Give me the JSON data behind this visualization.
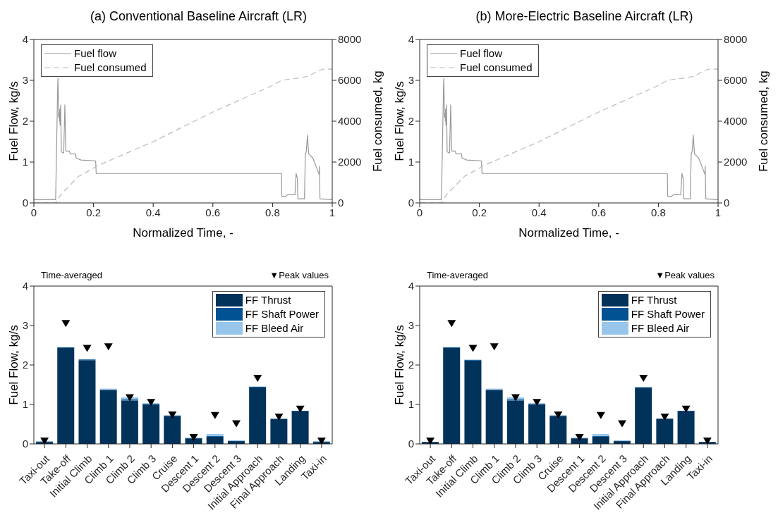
{
  "chart_data": [
    {
      "type": "line",
      "title": "(a) Conventional Baseline Aircraft (LR)",
      "xlabel": "Normalized Time, -",
      "ylabel": "Fuel Flow, kg/s",
      "y2label": "Fuel consumed, kg",
      "xlim": [
        0,
        1
      ],
      "xticks": [
        0,
        0.2,
        0.4,
        0.6,
        0.8,
        1
      ],
      "ylim": [
        0,
        4
      ],
      "yticks": [
        0,
        1,
        2,
        3,
        4
      ],
      "y2lim": [
        0,
        8000
      ],
      "y2ticks": [
        0,
        2000,
        4000,
        6000,
        8000
      ],
      "legend": "top left",
      "series": [
        {
          "name": "Fuel flow",
          "color": "#999999",
          "line_style": "solid",
          "x": [
            0,
            0.073,
            0.08,
            0.081,
            0.083,
            0.085,
            0.086,
            0.087,
            0.088,
            0.09,
            0.092,
            0.1,
            0.104,
            0.107,
            0.119,
            0.122,
            0.14,
            0.142,
            0.158,
            0.207,
            0.209,
            0.83,
            0.831,
            0.843,
            0.85,
            0.875,
            0.879,
            0.883,
            0.885,
            0.907,
            0.91,
            0.913,
            0.917,
            0.921,
            0.935,
            0.956,
            0.957,
            0.959,
            1
          ],
          "values": [
            0.08,
            0.08,
            2.9,
            3.05,
            2.1,
            2.2,
            2.0,
            2.3,
            1.9,
            2.4,
            1.25,
            1.22,
            2.4,
            1.27,
            1.27,
            1.2,
            1.2,
            1.1,
            1.05,
            1.03,
            0.72,
            0.72,
            0.17,
            0.15,
            0.2,
            0.2,
            0.72,
            0.6,
            0.1,
            0.1,
            1.2,
            1.25,
            1.66,
            1.2,
            1.1,
            0.7,
            0.9,
            0.1,
            0.08
          ]
        },
        {
          "name": "Fuel consumed",
          "color": "#bbbbbb",
          "line_style": "dashed",
          "axis": "y2",
          "x": [
            0,
            0.073,
            0.09,
            0.12,
            0.15,
            0.2,
            0.21,
            0.4,
            0.6,
            0.8,
            0.83,
            0.88,
            0.92,
            0.95,
            0.97,
            1
          ],
          "values": [
            0,
            0,
            400,
            850,
            1300,
            1700,
            1800,
            3000,
            4450,
            5750,
            6000,
            6100,
            6200,
            6450,
            6550,
            6550
          ]
        }
      ]
    },
    {
      "type": "line",
      "title": "(b) More-Electric Baseline Aircraft (LR)",
      "xlabel": "Normalized Time, -",
      "ylabel": "Fuel Flow, kg/s",
      "y2label": "Fuel consumed, kg",
      "xlim": [
        0,
        1
      ],
      "xticks": [
        0,
        0.2,
        0.4,
        0.6,
        0.8,
        1
      ],
      "ylim": [
        0,
        4
      ],
      "yticks": [
        0,
        1,
        2,
        3,
        4
      ],
      "y2lim": [
        0,
        8000
      ],
      "y2ticks": [
        0,
        2000,
        4000,
        6000,
        8000
      ],
      "legend": "top left",
      "series": [
        {
          "name": "Fuel flow",
          "color": "#999999",
          "line_style": "solid",
          "x": [
            0,
            0.073,
            0.08,
            0.081,
            0.083,
            0.085,
            0.086,
            0.087,
            0.088,
            0.09,
            0.092,
            0.1,
            0.104,
            0.107,
            0.119,
            0.122,
            0.14,
            0.142,
            0.158,
            0.207,
            0.209,
            0.83,
            0.831,
            0.843,
            0.85,
            0.875,
            0.879,
            0.883,
            0.885,
            0.907,
            0.91,
            0.913,
            0.917,
            0.921,
            0.935,
            0.956,
            0.957,
            0.959,
            1
          ],
          "values": [
            0.08,
            0.08,
            2.9,
            3.05,
            2.1,
            2.2,
            2.0,
            2.3,
            1.9,
            2.4,
            1.25,
            1.22,
            2.4,
            1.27,
            1.27,
            1.2,
            1.2,
            1.1,
            1.05,
            1.03,
            0.72,
            0.72,
            0.17,
            0.15,
            0.2,
            0.2,
            0.72,
            0.6,
            0.1,
            0.1,
            1.2,
            1.25,
            1.66,
            1.2,
            1.1,
            0.7,
            0.9,
            0.1,
            0.08
          ]
        },
        {
          "name": "Fuel consumed",
          "color": "#bbbbbb",
          "line_style": "dashed",
          "axis": "y2",
          "x": [
            0,
            0.073,
            0.09,
            0.12,
            0.15,
            0.2,
            0.21,
            0.4,
            0.6,
            0.8,
            0.83,
            0.88,
            0.92,
            0.95,
            0.97,
            1
          ],
          "values": [
            0,
            0,
            400,
            850,
            1300,
            1700,
            1800,
            3000,
            4450,
            5750,
            6000,
            6100,
            6200,
            6450,
            6550,
            6550
          ]
        }
      ]
    },
    {
      "type": "bar",
      "stacked": true,
      "ylabel": "Fuel Flow, kg/s",
      "ylim": [
        0,
        4
      ],
      "yticks": [
        0,
        1,
        2,
        3,
        4
      ],
      "legend": "top right",
      "annotations": [
        "Time-averaged",
        "▼Peak values"
      ],
      "categories": [
        "Taxi-out",
        "Take-off",
        "Initial Climb",
        "Climb 1",
        "Climb 2",
        "Climb 3",
        "Cruise",
        "Descent 1",
        "Descent 2",
        "Descent 3",
        "Initial Approach",
        "Final Approach",
        "Landing",
        "Taxi-in"
      ],
      "series": [
        {
          "name": "FF Thrust",
          "color": "#00325a",
          "values": [
            0.05,
            2.43,
            2.12,
            1.37,
            1.1,
            0.99,
            0.7,
            0.14,
            0.18,
            0.07,
            1.43,
            0.63,
            0.82,
            0.05
          ]
        },
        {
          "name": "FF Shaft Power",
          "color": "#005293",
          "values": [
            0.01,
            0.02,
            0.02,
            0.0,
            0.03,
            0.03,
            0.02,
            0.01,
            0.02,
            0.01,
            0.02,
            0.01,
            0.02,
            0.01
          ]
        },
        {
          "name": "FF Bleed Air",
          "color": "#98c6ea",
          "values": [
            0.01,
            0.0,
            0.0,
            0.03,
            0.05,
            0.01,
            0.0,
            0.01,
            0.05,
            0.01,
            0.0,
            0.0,
            0.0,
            0.01
          ]
        },
        {
          "type": "scatter",
          "marker": "triangle",
          "color": "#000000",
          "x": [
            "Taxi-out",
            "Take-off",
            "Initial Climb",
            "Climb 1",
            "Climb 2",
            "Climb 3",
            "Cruise",
            "Descent 1",
            "Descent 2",
            "Descent 3",
            "Initial Approach",
            "Final Approach",
            "Landing",
            "Taxi-in"
          ],
          "values": [
            0.07,
            3.05,
            2.42,
            2.46,
            1.17,
            1.05,
            0.73,
            0.16,
            0.72,
            0.51,
            1.66,
            0.68,
            0.88,
            0.07
          ]
        }
      ]
    },
    {
      "type": "bar",
      "stacked": true,
      "ylabel": "Fuel Flow, kg/s",
      "ylim": [
        0,
        4
      ],
      "yticks": [
        0,
        1,
        2,
        3,
        4
      ],
      "legend": "top right",
      "annotations": [
        "Time-averaged",
        "▼Peak values"
      ],
      "categories": [
        "Taxi-out",
        "Take-off",
        "Initial Climb",
        "Climb 1",
        "Climb 2",
        "Climb 3",
        "Cruise",
        "Descent 1",
        "Descent 2",
        "Descent 3",
        "Initial Approach",
        "Final Approach",
        "Landing",
        "Taxi-in"
      ],
      "series": [
        {
          "name": "FF Thrust",
          "color": "#00325a",
          "values": [
            0.05,
            2.43,
            2.11,
            1.37,
            1.1,
            0.99,
            0.7,
            0.14,
            0.18,
            0.07,
            1.42,
            0.64,
            0.82,
            0.05
          ]
        },
        {
          "name": "FF Shaft Power",
          "color": "#005293",
          "values": [
            null,
            0.02,
            0.02,
            0.0,
            0.03,
            0.03,
            0.02,
            0.01,
            0.02,
            0.01,
            0.02,
            null,
            0.02,
            null
          ]
        },
        {
          "name": "FF Bleed Air",
          "color": "#98c6ea",
          "values": [
            0.0,
            0.0,
            0.0,
            0.03,
            0.05,
            0.01,
            0.0,
            0.01,
            0.05,
            0.01,
            0.0,
            0.0,
            0.0,
            0.0
          ]
        },
        {
          "type": "scatter",
          "marker": "triangle",
          "color": "#000000",
          "x": [
            "Taxi-out",
            "Take-off",
            "Initial Climb",
            "Climb 1",
            "Climb 2",
            "Climb 3",
            "Cruise",
            "Descent 1",
            "Descent 2",
            "Descent 3",
            "Initial Approach",
            "Final Approach",
            "Landing",
            "Taxi-in"
          ],
          "values": [
            0.07,
            3.05,
            2.42,
            2.46,
            1.17,
            1.05,
            0.73,
            0.16,
            0.72,
            0.51,
            1.66,
            0.68,
            0.88,
            0.07
          ]
        }
      ]
    }
  ]
}
